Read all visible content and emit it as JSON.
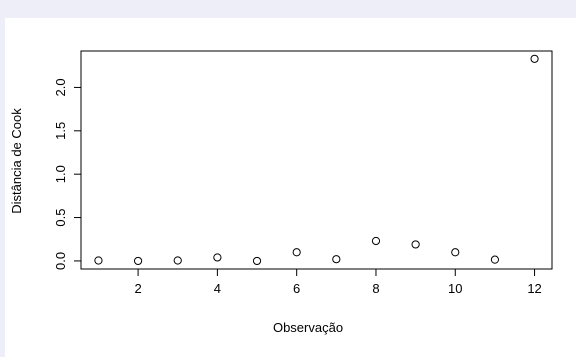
{
  "chart_data": {
    "type": "scatter",
    "title": "",
    "xlabel": "Observação",
    "ylabel": "Distância de Cook",
    "xlim": [
      0.56,
      12.44
    ],
    "ylim": [
      -0.093,
      2.42
    ],
    "xticks": [
      2,
      4,
      6,
      8,
      10,
      12
    ],
    "yticks": [
      0.0,
      0.5,
      1.0,
      1.5,
      2.0
    ],
    "xtick_labels": [
      "2",
      "4",
      "6",
      "8",
      "10",
      "12"
    ],
    "ytick_labels": [
      "0.0",
      "0.5",
      "1.0",
      "1.5",
      "2.0"
    ],
    "grid": false,
    "legend": "none",
    "marker": "open-circle",
    "colors": {
      "point": "#000000",
      "axis": "#000000",
      "background": "#ffffff"
    },
    "x": [
      1,
      2,
      3,
      4,
      5,
      6,
      7,
      8,
      9,
      10,
      11,
      12
    ],
    "y": [
      0.005,
      0.0,
      0.005,
      0.04,
      0.0,
      0.1,
      0.02,
      0.23,
      0.19,
      0.1,
      0.015,
      2.33
    ]
  }
}
